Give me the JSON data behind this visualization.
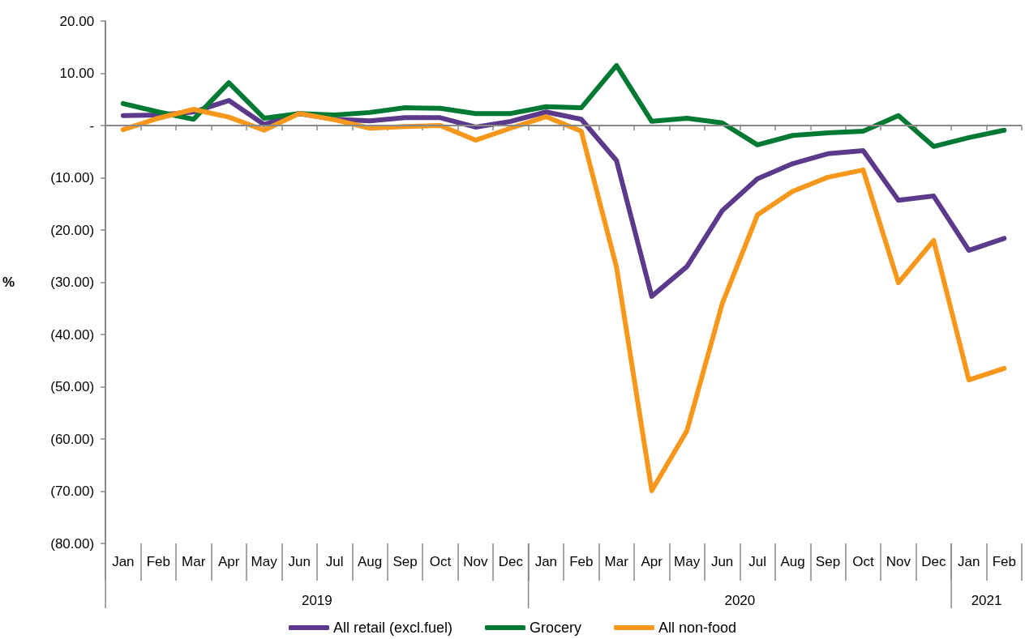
{
  "chart_data": {
    "type": "line",
    "categories": [
      "Jan",
      "Feb",
      "Mar",
      "Apr",
      "May",
      "Jun",
      "Jul",
      "Aug",
      "Sep",
      "Oct",
      "Nov",
      "Dec",
      "Jan",
      "Feb",
      "Mar",
      "Apr",
      "May",
      "Jun",
      "Jul",
      "Aug",
      "Sep",
      "Oct",
      "Nov",
      "Dec",
      "Jan",
      "Feb"
    ],
    "ylabel": "%",
    "ylim": [
      -80,
      20
    ],
    "yticks": [
      {
        "value": -80,
        "label": "(80.00)"
      },
      {
        "value": -70,
        "label": "(70.00)"
      },
      {
        "value": -60,
        "label": "(60.00)"
      },
      {
        "value": -50,
        "label": "(50.00)"
      },
      {
        "value": -40,
        "label": "(40.00)"
      },
      {
        "value": -30,
        "label": "(30.00)"
      },
      {
        "value": -20,
        "label": "(20.00)"
      },
      {
        "value": -10,
        "label": "(10.00)"
      },
      {
        "value": 0,
        "label": "-"
      },
      {
        "value": 10,
        "label": "10.00"
      },
      {
        "value": 20,
        "label": "20.00"
      }
    ],
    "series": [
      {
        "name": "All retail (excl.fuel)",
        "color": "#5b3a8c",
        "values": [
          1.9,
          2.0,
          2.6,
          4.8,
          0.2,
          2.3,
          1.2,
          0.9,
          1.5,
          1.5,
          -0.3,
          0.8,
          2.6,
          1.2,
          -6.7,
          -32.7,
          -27.0,
          -16.3,
          -10.2,
          -7.3,
          -5.4,
          -4.8,
          -14.3,
          -13.5,
          -23.9,
          -21.6
        ]
      },
      {
        "name": "Grocery",
        "color": "#007a33",
        "values": [
          4.2,
          2.6,
          1.2,
          8.2,
          1.4,
          2.3,
          2.0,
          2.5,
          3.4,
          3.3,
          2.3,
          2.3,
          3.6,
          3.4,
          11.5,
          0.8,
          1.4,
          0.5,
          -3.7,
          -1.9,
          -1.4,
          -1.1,
          1.9,
          -4.0,
          -2.3,
          -0.9
        ]
      },
      {
        "name": "All non-food",
        "color": "#f7981d",
        "values": [
          -0.8,
          1.4,
          3.1,
          1.6,
          -0.9,
          2.3,
          1.1,
          -0.5,
          -0.2,
          0.0,
          -2.8,
          -0.5,
          1.7,
          -1.1,
          -27.1,
          -69.9,
          -58.4,
          -34.1,
          -17.1,
          -12.6,
          -9.9,
          -8.5,
          -30.1,
          -22.0,
          -48.7,
          -46.5
        ]
      }
    ],
    "annotations": [
      "2019",
      "2020",
      "2021"
    ],
    "ref_lines": [
      {
        "axis": "y",
        "value": 0,
        "color": "#888888"
      }
    ],
    "grid": false,
    "legend": "bottom",
    "marker": "none",
    "line_style": "solid"
  }
}
